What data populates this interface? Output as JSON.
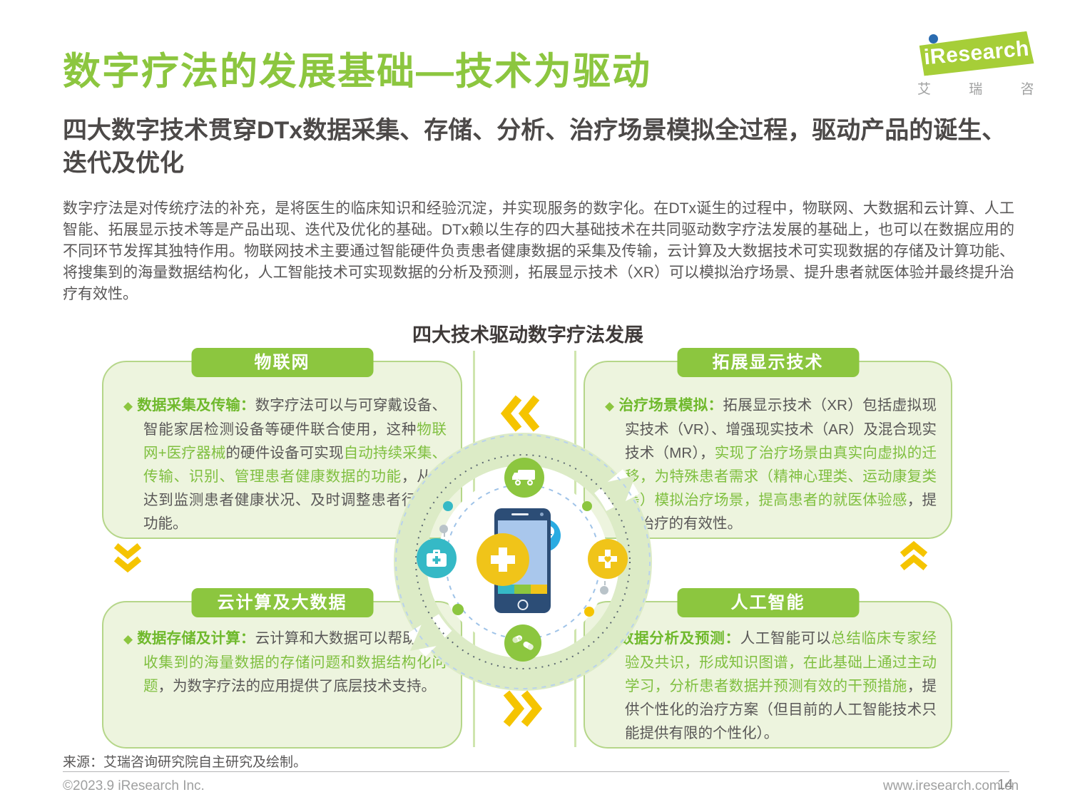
{
  "logo": {
    "i": "i",
    "brand": "Research",
    "brand_cn": "艾 瑞 咨 询"
  },
  "header": {
    "title": "数字疗法的发展基础—技术为驱动",
    "subtitle": "四大数字技术贯穿DTx数据采集、存储、分析、治疗场景模拟全过程，驱动产品的诞生、迭代及优化",
    "intro": "数字疗法是对传统疗法的补充，是将医生的临床知识和经验沉淀，并实现服务的数字化。在DTx诞生的过程中，物联网、大数据和云计算、人工智能、拓展显示技术等是产品出现、迭代及优化的基础。DTx赖以生存的四大基础技术在共同驱动数字疗法发展的基础上，也可以在数据应用的不同环节发挥其独特作用。物联网技术主要通过智能硬件负责患者健康数据的采集及传输，云计算及大数据技术可实现数据的存储及计算功能、将搜集到的海量数据结构化，人工智能技术可实现数据的分析及预测，拓展显示技术（XR）可以模拟治疗场景、提升患者就医体验并最终提升治疗有效性。"
  },
  "diagram": {
    "title": "四大技术驱动数字疗法发展"
  },
  "quadrants": [
    {
      "header": "物联网",
      "bullet": "◆",
      "heading": "数据采集及传输：",
      "segments": [
        {
          "text": "数字疗法可以与可穿戴设备、智能家居检测设备等硬件联合使用，这种",
          "green": false
        },
        {
          "text": "物联网+医疗器械",
          "green": true
        },
        {
          "text": "的硬件设备可实现",
          "green": false
        },
        {
          "text": "自动持续采集、传输、识别、管理患者健康数据的功能",
          "green": true
        },
        {
          "text": "，从而达到监测患者健康状况、及时调整患者行为的功能。",
          "green": false
        }
      ]
    },
    {
      "header": "拓展显示技术",
      "bullet": "◆",
      "heading": "治疗场景模拟：",
      "segments": [
        {
          "text": "拓展显示技术（XR）包括虚拟现实技术（VR）、增强现实技术（AR）及混合现实技术（MR），",
          "green": false
        },
        {
          "text": "实现了治疗场景由真实向虚拟的迁移，为特殊患者需求（精神心理类、运动康复类等）模拟治疗场景，提高患者的就医体验感",
          "green": true
        },
        {
          "text": "，提高治疗的有效性。",
          "green": false
        }
      ]
    },
    {
      "header": "云计算及大数据",
      "bullet": "◆",
      "heading": "数据存储及计算：",
      "segments": [
        {
          "text": "云计算和大数据可以帮助",
          "green": false
        },
        {
          "text": "解决收集到的海量数据的存储问题和数据结构化问题",
          "green": true
        },
        {
          "text": "，为数字疗法的应用提供了底层技术支持。",
          "green": false
        }
      ]
    },
    {
      "header": "人工智能",
      "bullet": "◆",
      "heading": "数据分析及预测：",
      "segments": [
        {
          "text": "人工智能可以",
          "green": false
        },
        {
          "text": "总结临床专家经验及共识，形成知识图谱，在此基础上通过主动学习，分析患者数据并预测有效的干预措施",
          "green": true
        },
        {
          "text": "，提供个性化的治疗方案（但目前的人工智能技术只能提供有限的个性化）。",
          "green": false
        }
      ]
    }
  ],
  "icons": {
    "center": [
      "ambulance-icon",
      "heart-ecg-icon",
      "first-aid-kit-icon",
      "medical-cross-icon",
      "pills-icon",
      "plus-icon"
    ],
    "chevrons": [
      "chevron-double-left-icon",
      "chevron-double-right-icon",
      "chevron-double-down-icon",
      "chevron-double-up-icon"
    ]
  },
  "colors": {
    "brand_green": "#8cc63f",
    "box_fill": "#edf4de",
    "box_border": "#b5d689",
    "text_dark": "#595757",
    "text_green": "#7fbf3f",
    "yellow": "#f5c400",
    "blue": "#29abe2",
    "teal": "#35b9c6",
    "phone_blue": "#2c4d76"
  },
  "footer": {
    "source": "来源：艾瑞咨询研究院自主研究及绘制。",
    "copyright": "©2023.9 iResearch Inc.",
    "url": "www.iresearch.com.cn",
    "page_number": "14"
  }
}
